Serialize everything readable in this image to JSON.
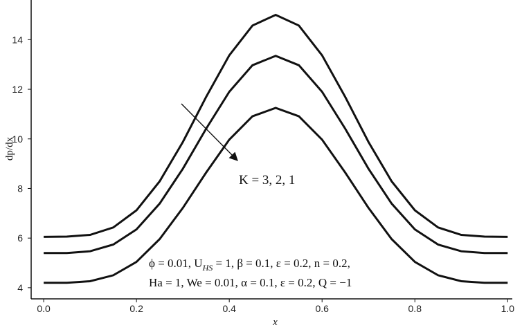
{
  "chart_data": {
    "type": "line",
    "x_label": "x",
    "y_label": "dp/dx",
    "x": [
      0,
      0.05,
      0.1,
      0.15,
      0.2,
      0.25,
      0.3,
      0.35,
      0.4,
      0.45,
      0.5,
      0.55,
      0.6,
      0.65,
      0.7,
      0.75,
      0.8,
      0.85,
      0.9,
      0.95,
      1.0
    ],
    "series": [
      {
        "color": "#111111",
        "values": [
          6.05,
          6.06,
          6.13,
          6.43,
          7.12,
          8.29,
          9.88,
          11.69,
          13.37,
          14.57,
          15.0,
          14.57,
          13.37,
          11.69,
          9.88,
          8.29,
          7.12,
          6.43,
          6.13,
          6.06,
          6.05
        ]
      },
      {
        "color": "#111111",
        "values": [
          5.4,
          5.4,
          5.47,
          5.74,
          6.35,
          7.39,
          8.8,
          10.41,
          11.9,
          12.97,
          13.35,
          12.97,
          11.9,
          10.41,
          8.8,
          7.39,
          6.35,
          5.74,
          5.47,
          5.4,
          5.4
        ]
      },
      {
        "color": "#111111",
        "values": [
          4.2,
          4.2,
          4.26,
          4.5,
          5.04,
          5.96,
          7.22,
          8.64,
          9.97,
          10.91,
          11.25,
          10.91,
          9.97,
          8.64,
          7.22,
          5.96,
          5.04,
          4.5,
          4.26,
          4.2,
          4.2
        ]
      }
    ],
    "xlim": [
      -0.027,
      1.01
    ],
    "ylim": [
      3.55,
      15.6
    ],
    "xticks": [
      {
        "value": 0,
        "label": "0.0"
      },
      0.2,
      0.4,
      0.6,
      0.8,
      {
        "value": 1,
        "label": "1.0"
      }
    ],
    "yticks": [
      4,
      6,
      8,
      10,
      12,
      14
    ],
    "annotations": [
      {
        "parts": [
          "K = 3, 2, 1"
        ]
      },
      {
        "parts": [
          "ϕ  = 0.01, U",
          "HS",
          "  =  1, β = 0.1, ε = 0.2, n  = 0.2,"
        ]
      },
      {
        "parts": [
          "Ha = 1, We = 0.01, α = 0.1, ε = 0.2, Q = −1"
        ]
      }
    ]
  }
}
